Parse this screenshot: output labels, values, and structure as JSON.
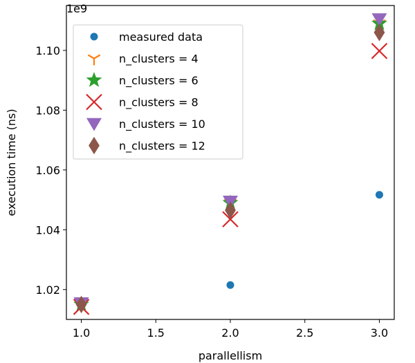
{
  "chart_data": {
    "type": "scatter",
    "xlabel": "parallellism",
    "ylabel": "execution time (ns)",
    "y_offset_text": "1e9",
    "x_ticks": [
      "1.0",
      "1.5",
      "2.0",
      "2.5",
      "3.0"
    ],
    "y_ticks": [
      "1.02",
      "1.04",
      "1.06",
      "1.08",
      "1.10"
    ],
    "xlim": [
      0.9,
      3.1
    ],
    "ylim": [
      1.01,
      1.115
    ],
    "grid": false,
    "legend_position": "upper-left",
    "series": [
      {
        "name": "measured data",
        "marker": "circle",
        "color": "#1f77b4",
        "x": [
          1.0,
          2.0,
          3.0
        ],
        "y": [
          1.015,
          1.0215,
          1.0517
        ]
      },
      {
        "name": "n_clusters = 4",
        "marker": "tri-down",
        "color": "#ff7f0e",
        "x": [
          1.0,
          2.0,
          3.0
        ],
        "y": [
          1.015,
          1.049,
          1.109
        ]
      },
      {
        "name": "n_clusters = 6",
        "marker": "star",
        "color": "#2ca02c",
        "x": [
          1.0,
          2.0,
          3.0
        ],
        "y": [
          1.015,
          1.049,
          1.109
        ]
      },
      {
        "name": "n_clusters = 8",
        "marker": "x",
        "color": "#d62728",
        "x": [
          1.0,
          2.0,
          3.0
        ],
        "y": [
          1.0142,
          1.0435,
          1.0998
        ]
      },
      {
        "name": "n_clusters = 10",
        "marker": "triangle-down",
        "color": "#9467bd",
        "x": [
          1.0,
          2.0,
          3.0
        ],
        "y": [
          1.0155,
          1.0495,
          1.1105
        ]
      },
      {
        "name": "n_clusters = 12",
        "marker": "diamond",
        "color": "#8c564b",
        "x": [
          1.0,
          2.0,
          3.0
        ],
        "y": [
          1.015,
          1.0465,
          1.106
        ]
      }
    ]
  }
}
